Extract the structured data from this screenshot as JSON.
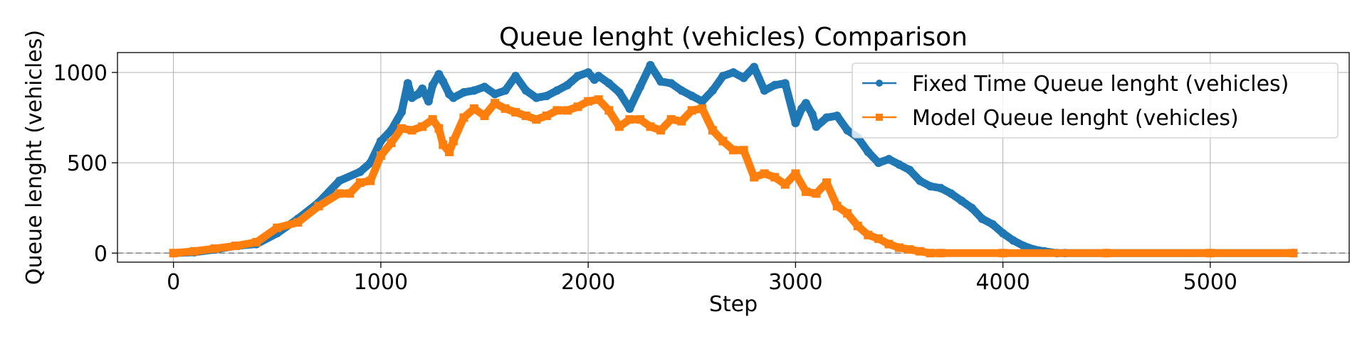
{
  "chart_data": {
    "type": "line",
    "title": "Queue lenght (vehicles) Comparison",
    "xlabel": "Step",
    "ylabel": "Queue lenght (vehicles)",
    "xlim": [
      -270,
      5670
    ],
    "ylim": [
      -50,
      1110
    ],
    "xticks": [
      0,
      1000,
      2000,
      3000,
      4000,
      5000
    ],
    "yticks": [
      0,
      500,
      1000
    ],
    "grid": true,
    "legend_position": "top-right",
    "reference_line": {
      "y": 0,
      "style": "dashed",
      "color": "#7f7f7f"
    },
    "series": [
      {
        "name": "Fixed Time Queue lenght (vehicles)",
        "color": "#1f77b4",
        "marker": "circle",
        "x": [
          0,
          100,
          200,
          300,
          400,
          500,
          600,
          700,
          800,
          900,
          950,
          1000,
          1050,
          1100,
          1130,
          1150,
          1180,
          1200,
          1230,
          1250,
          1280,
          1300,
          1330,
          1350,
          1400,
          1450,
          1500,
          1550,
          1600,
          1650,
          1700,
          1750,
          1800,
          1850,
          1900,
          1950,
          2000,
          2030,
          2050,
          2100,
          2150,
          2200,
          2250,
          2300,
          2350,
          2400,
          2450,
          2500,
          2550,
          2600,
          2650,
          2700,
          2750,
          2800,
          2850,
          2900,
          2950,
          3000,
          3030,
          3050,
          3080,
          3100,
          3150,
          3200,
          3250,
          3300,
          3350,
          3400,
          3450,
          3500,
          3550,
          3600,
          3650,
          3700,
          3750,
          3800,
          3850,
          3900,
          3950,
          4000,
          4050,
          4100,
          4150,
          4200,
          4260,
          4300,
          4500,
          5000,
          5400
        ],
        "y": [
          0,
          5,
          20,
          40,
          50,
          110,
          190,
          280,
          400,
          450,
          500,
          620,
          680,
          780,
          940,
          860,
          880,
          910,
          840,
          930,
          990,
          950,
          880,
          860,
          890,
          900,
          920,
          880,
          900,
          980,
          900,
          860,
          870,
          900,
          930,
          980,
          1000,
          960,
          980,
          940,
          890,
          800,
          920,
          1040,
          950,
          940,
          900,
          870,
          840,
          900,
          980,
          1000,
          970,
          1030,
          900,
          930,
          940,
          720,
          800,
          830,
          770,
          700,
          750,
          760,
          680,
          640,
          560,
          500,
          520,
          490,
          460,
          400,
          370,
          360,
          330,
          290,
          250,
          190,
          160,
          110,
          70,
          40,
          20,
          10,
          0,
          0,
          0,
          0,
          0
        ]
      },
      {
        "name": "Model Queue lenght (vehicles)",
        "color": "#ff7f0e",
        "marker": "square",
        "x": [
          0,
          100,
          200,
          300,
          400,
          500,
          600,
          700,
          800,
          850,
          900,
          950,
          1000,
          1050,
          1100,
          1150,
          1200,
          1250,
          1280,
          1300,
          1330,
          1350,
          1400,
          1450,
          1500,
          1550,
          1600,
          1650,
          1700,
          1750,
          1800,
          1850,
          1900,
          1950,
          2000,
          2050,
          2100,
          2150,
          2200,
          2250,
          2300,
          2350,
          2400,
          2450,
          2500,
          2550,
          2600,
          2650,
          2700,
          2750,
          2800,
          2850,
          2900,
          2950,
          3000,
          3050,
          3100,
          3150,
          3200,
          3250,
          3300,
          3350,
          3400,
          3450,
          3500,
          3550,
          3600,
          3650,
          3700,
          4000,
          4500,
          5000,
          5400
        ],
        "y": [
          0,
          10,
          25,
          40,
          60,
          140,
          170,
          260,
          330,
          330,
          390,
          400,
          540,
          610,
          690,
          680,
          700,
          740,
          690,
          600,
          560,
          620,
          750,
          800,
          760,
          830,
          800,
          780,
          760,
          740,
          760,
          790,
          790,
          810,
          840,
          850,
          790,
          700,
          740,
          740,
          700,
          680,
          740,
          730,
          790,
          800,
          680,
          620,
          570,
          570,
          420,
          440,
          420,
          380,
          440,
          340,
          330,
          390,
          260,
          220,
          150,
          100,
          80,
          50,
          30,
          20,
          10,
          0,
          0,
          0,
          0,
          0,
          0
        ]
      }
    ]
  }
}
